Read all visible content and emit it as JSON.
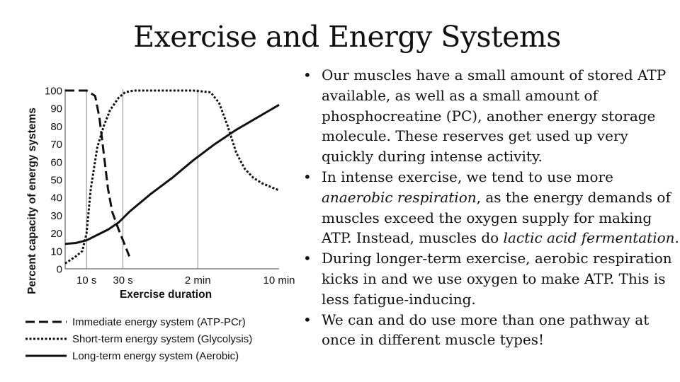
{
  "slide": {
    "title": "Exercise and Energy Systems"
  },
  "bullets": [
    {
      "parts": [
        "Our muscles have a small amount of stored ATP available, as well as a small amount of phosphocreatine (PC), another energy storage molecule. These reserves get used up very quickly during intense activity."
      ]
    },
    {
      "parts": [
        "In intense exercise, we tend to use more ",
        "anaerobic respiration",
        ", as the energy demands of muscles exceed the oxygen supply for making ATP. Instead, muscles do ",
        "lactic acid fermentation",
        "."
      ]
    },
    {
      "parts": [
        "During longer-term exercise, aerobic respiration kicks in and we use oxygen to make ATP. This is less fatigue-inducing."
      ]
    },
    {
      "parts": [
        "We can and do use more than one pathway at once in different muscle types!"
      ]
    }
  ],
  "chart_data": {
    "type": "line",
    "title": "",
    "xlabel": "Exercise duration",
    "ylabel": "Percent capacity of energy systems",
    "ylim": [
      0,
      100
    ],
    "yticks": [
      0,
      10,
      20,
      30,
      40,
      50,
      60,
      70,
      80,
      90,
      100
    ],
    "x_range": [
      0,
      10
    ],
    "xticks": [
      {
        "label": "10 s",
        "x": 1
      },
      {
        "label": "30 s",
        "x": 2.7
      },
      {
        "label": "2 min",
        "x": 6.2
      },
      {
        "label": "10 min",
        "x": 10
      }
    ],
    "grid": "vertical lines at tick marks",
    "series": [
      {
        "name": "Immediate energy system (ATP-PCr)",
        "style": "dashed",
        "x": [
          0,
          1.0,
          1.4,
          1.6,
          1.8,
          2.0,
          2.2,
          2.5,
          2.8,
          3.0
        ],
        "y": [
          100,
          100,
          97,
          85,
          65,
          45,
          32,
          22,
          13,
          7
        ]
      },
      {
        "name": "Short-term energy system (Glycolysis)",
        "style": "dotted",
        "x": [
          0,
          0.5,
          0.8,
          1.0,
          1.2,
          1.5,
          1.8,
          2.1,
          2.5,
          2.8,
          3.2,
          4.0,
          5.0,
          6.0,
          6.8,
          7.2,
          7.6,
          8.0,
          8.4,
          8.8,
          9.2,
          9.6,
          10.0
        ],
        "y": [
          3,
          7,
          10,
          20,
          45,
          68,
          80,
          89,
          96,
          99,
          100,
          100,
          100,
          100,
          99,
          93,
          80,
          65,
          56,
          51,
          48,
          46,
          44
        ]
      },
      {
        "name": "Long-term energy system (Aerobic)",
        "style": "solid",
        "x": [
          0,
          0.5,
          1.0,
          1.5,
          2.0,
          2.5,
          3.0,
          4.0,
          5.0,
          6.0,
          7.0,
          8.0,
          9.0,
          10.0
        ],
        "y": [
          14,
          14.5,
          16,
          19,
          22,
          26,
          32,
          42,
          51,
          61,
          70,
          78,
          85,
          92
        ]
      }
    ]
  }
}
